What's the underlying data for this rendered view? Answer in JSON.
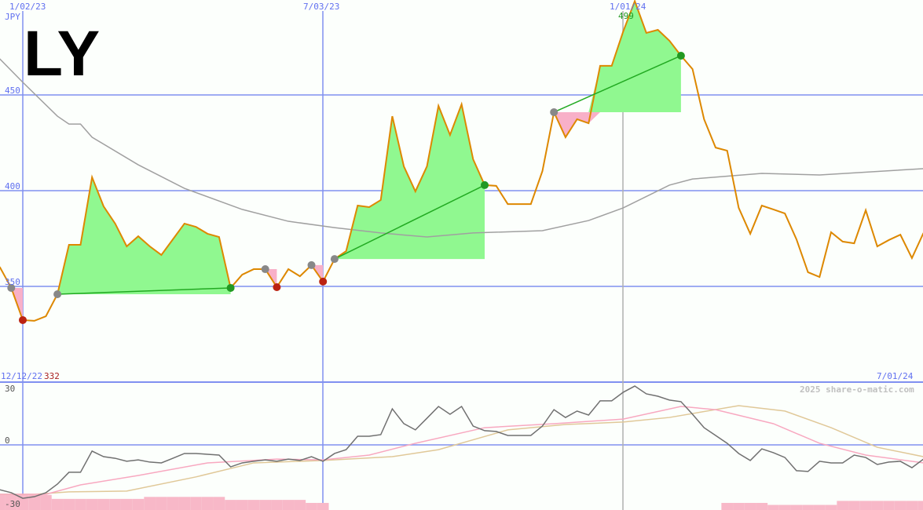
{
  "ticker": "LY",
  "currency": "JPY",
  "watermark": "2025 share-o-matic.com",
  "range_start_label": "12/12/22",
  "range_min_label": "332",
  "range_end_label": "7/01/24",
  "high_label": "499",
  "colors": {
    "price": "#dd8800",
    "ma_long": "#a0a0a0",
    "win_fill": "#90f890",
    "loss_fill": "#f8b0c8",
    "grid_blue": "#8090f0",
    "grid_gray": "#b0b0b0",
    "ind_main": "#707070",
    "ind_pink": "#f8a8c0",
    "ind_tan": "#e0c898",
    "hist": "#f8b8c8",
    "entry_dot": "#888888",
    "win_dot": "#229922",
    "loss_dot": "#bb2211",
    "trade_line": "#22aa22"
  },
  "chart_data": [
    {
      "type": "line",
      "title": "",
      "x_ticks": [
        "1/02/23",
        "7/03/23",
        "1/01/24"
      ],
      "y_ticks": [
        "350",
        "400",
        "450"
      ],
      "ylim": [
        320,
        500
      ],
      "grid": true,
      "dates": [
        "12/19/22",
        "12/26/22",
        "1/02/23",
        "1/09/23",
        "1/16/23",
        "1/23/23",
        "1/30/23",
        "2/06/23",
        "2/13/23",
        "2/20/23",
        "2/27/23",
        "3/06/23",
        "3/13/23",
        "3/20/23",
        "3/27/23",
        "4/03/23",
        "4/10/23",
        "4/17/23",
        "4/24/23",
        "5/01/23",
        "5/08/23",
        "5/15/23",
        "5/22/23",
        "5/29/23",
        "6/05/23",
        "6/12/23",
        "6/19/23",
        "6/26/23",
        "7/03/23",
        "7/10/23",
        "7/17/23",
        "7/24/23",
        "7/31/23",
        "8/07/23",
        "8/14/23",
        "8/21/23",
        "8/28/23",
        "9/04/23",
        "9/11/23",
        "9/18/23",
        "9/25/23",
        "10/02/23",
        "10/09/23",
        "10/16/23",
        "10/23/23",
        "10/30/23",
        "11/06/23",
        "11/13/23",
        "11/20/23",
        "11/27/23",
        "12/04/23",
        "12/11/23",
        "12/18/23",
        "12/25/23",
        "1/01/24",
        "1/08/24",
        "1/15/24",
        "1/22/24",
        "1/29/24",
        "2/05/24",
        "2/12/24",
        "2/19/24",
        "2/26/24",
        "3/04/24",
        "3/11/24",
        "3/18/24",
        "3/25/24",
        "4/01/24",
        "4/08/24",
        "4/15/24",
        "4/22/24",
        "4/29/24",
        "5/06/24",
        "5/13/24",
        "5/20/24",
        "5/27/24",
        "6/03/24",
        "6/10/24",
        "6/17/24",
        "6/24/24",
        "7/01/24"
      ],
      "series": [
        {
          "key": "price",
          "values": [
            360.2,
            349.2,
            332.4,
            332,
            334.4,
            345.9,
            371.7,
            371.7,
            407,
            391.8,
            382.8,
            370.9,
            376.2,
            370.9,
            366.4,
            374.6,
            382.8,
            381.1,
            377.5,
            375.8,
            349.2,
            356.1,
            359,
            359,
            349.6,
            359,
            355.3,
            361.1,
            352.5,
            364.3,
            368.4,
            392.2,
            391.4,
            395.1,
            438.9,
            412.7,
            399.6,
            412.7,
            444.3,
            429.1,
            445.1,
            416.4,
            402.9,
            402.5,
            393,
            393,
            393,
            410.2,
            441,
            427.9,
            437.3,
            435.2,
            465.2,
            465.2,
            483.2,
            499,
            482.4,
            484,
            478.3,
            470.5,
            463.5,
            437.3,
            422.5,
            420.9,
            391,
            377.5,
            392.2,
            390.2,
            388.1,
            374.6,
            357.4,
            354.9,
            378.3,
            373.4,
            372.5,
            389.8,
            370.9,
            374.2,
            377,
            364.8,
            377.9
          ]
        },
        {
          "key": "ma_long",
          "points": [
            [
              "12/19/22",
              468.9
            ],
            [
              "1/02/23",
              456.6
            ],
            [
              "1/23/23",
              438.9
            ],
            [
              "1/30/23",
              434.8
            ],
            [
              "2/06/23",
              434.8
            ],
            [
              "2/13/23",
              427.9
            ],
            [
              "3/13/23",
              413.5
            ],
            [
              "4/10/23",
              401.2
            ],
            [
              "5/15/23",
              390.2
            ],
            [
              "6/12/23",
              384
            ],
            [
              "7/10/23",
              380.7
            ],
            [
              "8/07/23",
              377.9
            ],
            [
              "9/04/23",
              375.8
            ],
            [
              "10/02/23",
              377.9
            ],
            [
              "11/13/23",
              379.1
            ],
            [
              "12/11/23",
              384.4
            ],
            [
              "1/01/24",
              391
            ],
            [
              "1/29/24",
              402.9
            ],
            [
              "2/12/24",
              406.1
            ],
            [
              "3/25/24",
              409
            ],
            [
              "4/29/24",
              408.2
            ],
            [
              "7/01/24",
              411.5
            ]
          ]
        }
      ],
      "trades": [
        {
          "entry": "12/26/22",
          "exit": "1/02/23",
          "result": "loss"
        },
        {
          "entry": "1/23/23",
          "exit": "5/08/23",
          "result": "win"
        },
        {
          "entry": "5/29/23",
          "exit": "6/05/23",
          "result": "loss"
        },
        {
          "entry": "6/26/23",
          "exit": "7/03/23",
          "result": "loss"
        },
        {
          "entry": "7/10/23",
          "exit": "10/09/23",
          "result": "win"
        },
        {
          "entry": "11/20/23",
          "exit": "2/05/24",
          "result": "win"
        }
      ]
    },
    {
      "type": "line",
      "title": "",
      "y_ticks": [
        "30",
        "0",
        "-30"
      ],
      "ylim": [
        -32.4,
        31
      ],
      "main": [
        -22.4,
        -23.9,
        -26.7,
        -25.9,
        -23.9,
        -19.6,
        -13.7,
        -13.7,
        -3.1,
        -5.9,
        -6.7,
        -8.2,
        -7.5,
        -8.6,
        -9,
        -6.7,
        -4.3,
        -4.3,
        -4.7,
        -5.1,
        -11,
        -9,
        -8.2,
        -7.5,
        -8.2,
        -7.1,
        -7.8,
        -5.9,
        -8.2,
        -4.3,
        -2.4,
        4.3,
        4.3,
        5.1,
        18,
        10.6,
        7.5,
        13.3,
        19.2,
        15.3,
        19.2,
        9.4,
        7.1,
        6.7,
        4.7,
        4.7,
        4.7,
        9.4,
        17.6,
        13.7,
        16.9,
        14.9,
        22,
        22,
        26.3,
        29.4,
        25.5,
        24.3,
        22.4,
        21.6,
        15.3,
        8.6,
        4.7,
        0.8,
        -4.3,
        -7.8,
        -2,
        -3.9,
        -6.3,
        -12.9,
        -13.3,
        -8.2,
        -9,
        -9,
        -5.1,
        -6.3,
        -9.8,
        -8.6,
        -8.2,
        -11.4,
        -7.1
      ],
      "pink": [
        [
          "12/19/22",
          -24.7
        ],
        [
          "1/16/23",
          -24.7
        ],
        [
          "2/06/23",
          -20
        ],
        [
          "3/13/23",
          -15.3
        ],
        [
          "4/24/23",
          -9
        ],
        [
          "6/05/23",
          -7.1
        ],
        [
          "7/03/23",
          -7.5
        ],
        [
          "7/31/23",
          -5.1
        ],
        [
          "8/28/23",
          0.8
        ],
        [
          "10/09/23",
          8.6
        ],
        [
          "11/20/23",
          10.6
        ],
        [
          "1/01/24",
          12.9
        ],
        [
          "2/05/24",
          19.2
        ],
        [
          "2/26/24",
          17.6
        ],
        [
          "4/01/24",
          10.6
        ],
        [
          "4/29/24",
          0.8
        ],
        [
          "5/27/24",
          -5.1
        ],
        [
          "7/01/24",
          -9
        ]
      ],
      "tan": [
        [
          "12/19/22",
          -24.7
        ],
        [
          "1/09/23",
          -24.7
        ],
        [
          "1/30/23",
          -23.5
        ],
        [
          "3/06/23",
          -23.1
        ],
        [
          "4/17/23",
          -16
        ],
        [
          "5/22/23",
          -9
        ],
        [
          "7/03/23",
          -7.8
        ],
        [
          "8/14/23",
          -5.9
        ],
        [
          "9/11/23",
          -2.4
        ],
        [
          "10/23/23",
          7.5
        ],
        [
          "11/27/23",
          10.2
        ],
        [
          "1/01/24",
          11.4
        ],
        [
          "1/29/24",
          13.7
        ],
        [
          "3/11/24",
          19.6
        ],
        [
          "4/08/24",
          16.9
        ],
        [
          "5/06/24",
          8.6
        ],
        [
          "6/03/24",
          -1.2
        ],
        [
          "7/01/24",
          -5.9
        ]
      ],
      "histogram": [
        -25,
        -25,
        -25,
        -25,
        -25,
        -27,
        -27,
        -27,
        -27,
        -27,
        -27,
        -27,
        -27,
        -26,
        -26,
        -26,
        -26,
        -26,
        -26,
        -26,
        -27.5,
        -27.5,
        -27.5,
        -27.5,
        -27.5,
        -27.5,
        -27.5,
        -29,
        -29,
        null,
        null,
        null,
        null,
        null,
        null,
        null,
        null,
        null,
        null,
        null,
        null,
        null,
        null,
        null,
        null,
        null,
        null,
        null,
        null,
        null,
        null,
        null,
        null,
        null,
        null,
        null,
        null,
        null,
        null,
        null,
        null,
        null,
        null,
        -29,
        -29,
        -29,
        -29,
        -30,
        -30,
        -30,
        -30,
        -30,
        -30,
        -28,
        -28,
        -28,
        -28,
        -28,
        -28,
        -28,
        -28
      ]
    }
  ]
}
